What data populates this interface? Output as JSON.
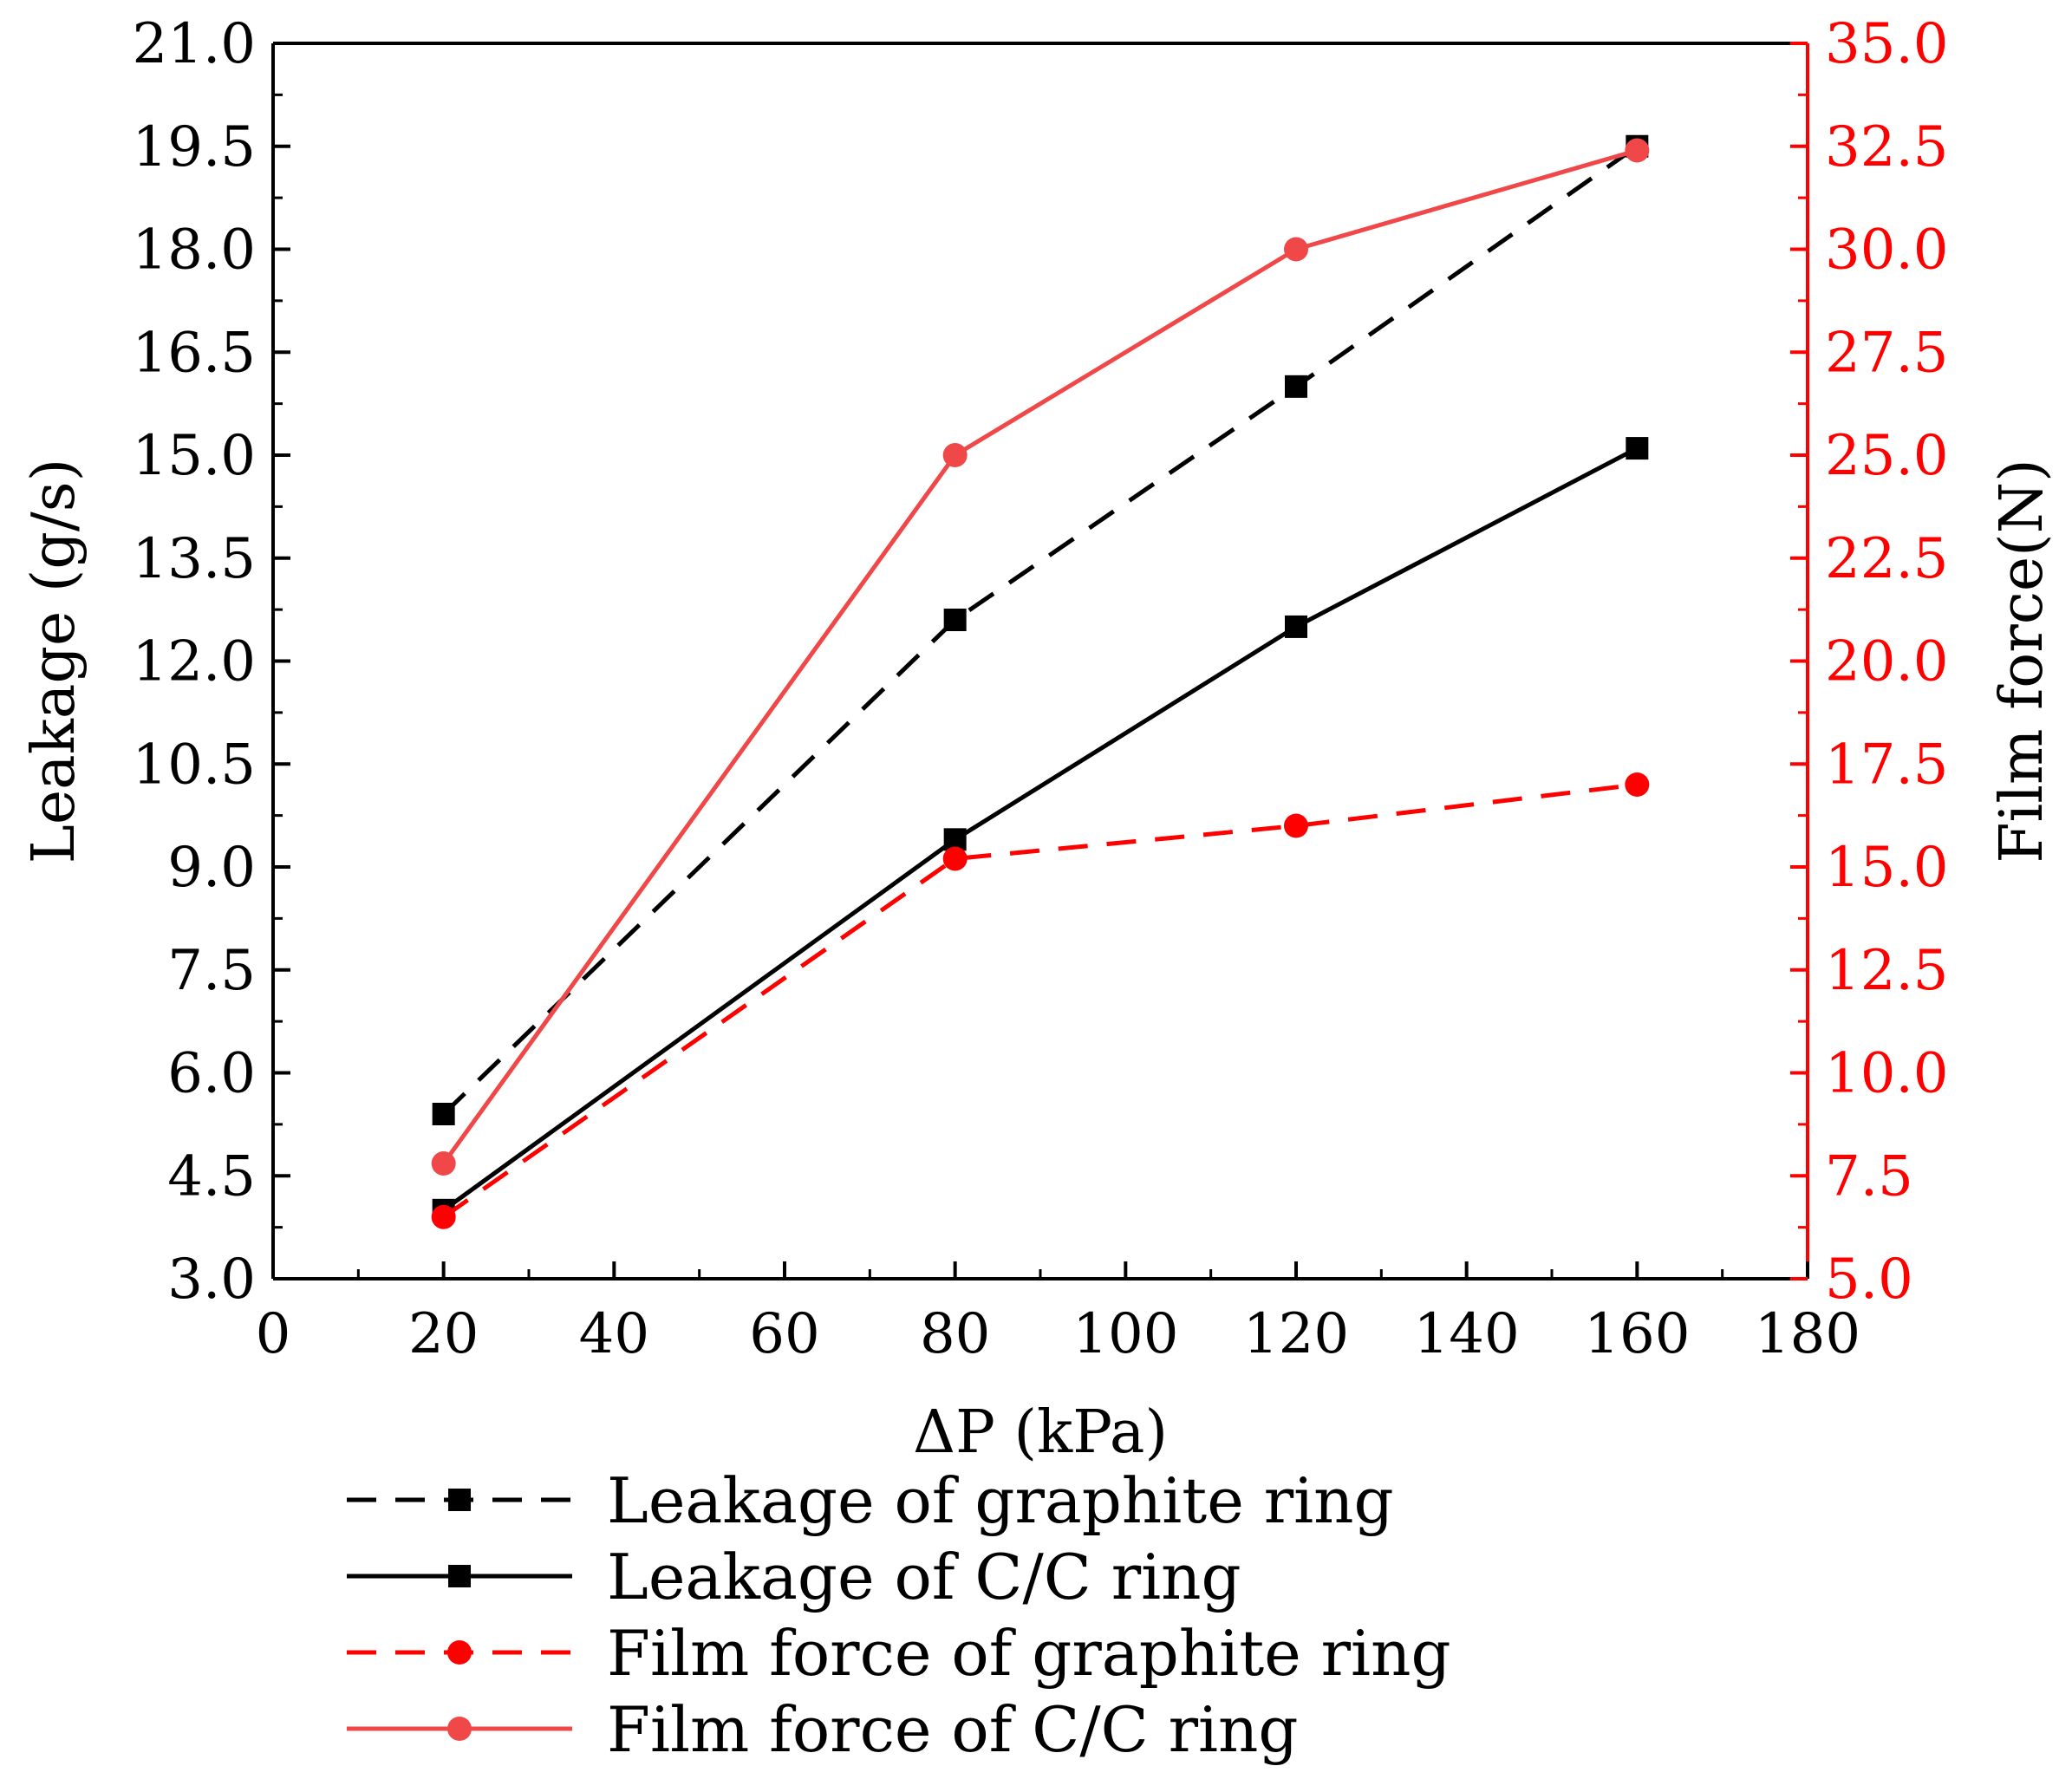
{
  "chart_data": {
    "type": "line",
    "title": "",
    "x_axis": {
      "label": "ΔP (kPa)",
      "range": [
        0,
        180
      ],
      "ticks": [
        "0",
        "20",
        "40",
        "60",
        "80",
        "100",
        "120",
        "140",
        "160",
        "180"
      ]
    },
    "y_axis_left": {
      "label": "Leakage (g/s)",
      "range": [
        3.0,
        21.0
      ],
      "ticks": [
        "3.0",
        "4.5",
        "6.0",
        "7.5",
        "9.0",
        "10.5",
        "12.0",
        "13.5",
        "15.0",
        "16.5",
        "18.0",
        "19.5",
        "21.0"
      ],
      "color": "#000000"
    },
    "y_axis_right": {
      "label": "Film force(N)",
      "range": [
        5.0,
        35.0
      ],
      "ticks": [
        "5.0",
        "7.5",
        "10.0",
        "12.5",
        "15.0",
        "17.5",
        "20.0",
        "22.5",
        "25.0",
        "27.5",
        "30.0",
        "32.5",
        "35.0"
      ],
      "color": "#ff0000"
    },
    "series": [
      {
        "name": "Leakage of graphite ring",
        "axis": "left",
        "x": [
          20,
          80,
          120,
          160
        ],
        "values": [
          5.4,
          12.6,
          16.0,
          19.5
        ],
        "color": "#000000",
        "dash": "dashed",
        "marker": "square"
      },
      {
        "name": "Leakage of C/C ring",
        "axis": "left",
        "x": [
          20,
          80,
          120,
          160
        ],
        "values": [
          4.0,
          9.4,
          12.5,
          15.1
        ],
        "color": "#000000",
        "dash": "solid",
        "marker": "square"
      },
      {
        "name": "Film force of graphite ring",
        "axis": "right",
        "x": [
          20,
          80,
          120,
          160
        ],
        "values": [
          6.5,
          15.2,
          16.0,
          17.0
        ],
        "color": "#ff0000",
        "dash": "dashed",
        "marker": "circle"
      },
      {
        "name": "Film force of C/C ring",
        "axis": "right",
        "x": [
          20,
          80,
          120,
          160
        ],
        "values": [
          7.8,
          25.0,
          30.0,
          32.4
        ],
        "color": "#f04848",
        "dash": "solid",
        "marker": "circle"
      }
    ],
    "legend": {
      "placement": "bottom"
    }
  }
}
